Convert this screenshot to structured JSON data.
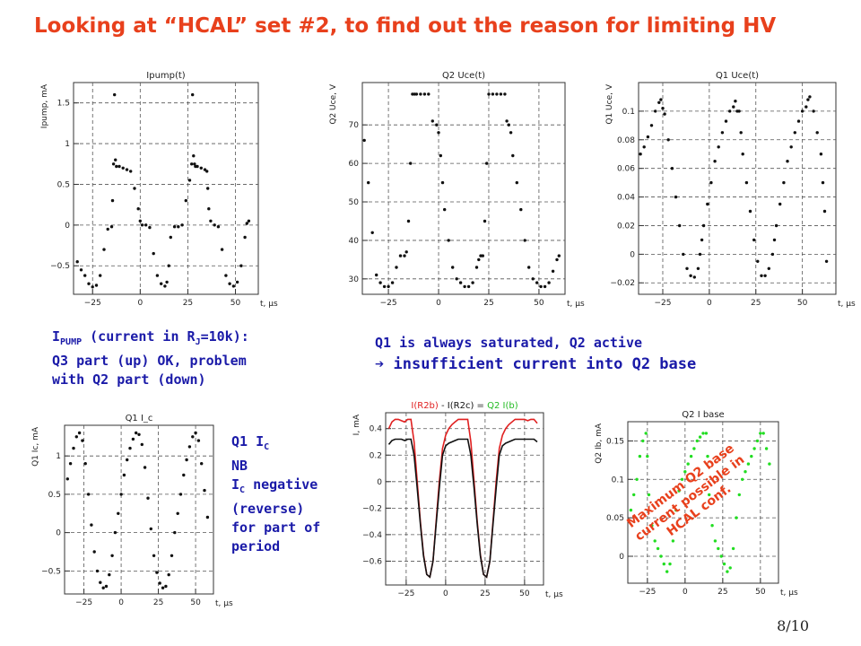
{
  "slide": {
    "title": "Looking at “HCAL” set #2, to find out the reason for limiting HV",
    "page_number": "8/10",
    "title_color": "#e8401c",
    "note_color": "#1a1aa8"
  },
  "notes": {
    "ipump": {
      "line1_main": "I",
      "line1_sub": "PUMP",
      "line1_rest": " (current in R",
      "line1_sub2": "J",
      "line1_end": "=10k):",
      "line2": "Q3 part (up) OK, problem",
      "line3": "with Q2 part (down)"
    },
    "q1q2": {
      "line1": "Q1 is always saturated, Q2 active",
      "line2_arrow": "➔",
      "line2": " insufficient current into Q2 base"
    },
    "q1ic": {
      "line1_main": "Q1 I",
      "line1_sub": "C",
      "line2": "NB",
      "line3_main": "I",
      "line3_sub": "C",
      "line3_rest": " negative",
      "line4": "(reverse)",
      "line5": "for part of",
      "line6": "period"
    },
    "annotation": {
      "line1": "Maximum Q2 base",
      "line2": "current possible in",
      "line3": "HCAL conf."
    }
  },
  "chart_data": [
    {
      "type": "scatter",
      "title": "Ipump(t)",
      "ylabel": "Ipump, mA",
      "xlabel": "t, μs",
      "xlim": [
        -35,
        62
      ],
      "ylim": [
        -0.85,
        1.75
      ],
      "xticks": [
        -25,
        0,
        25,
        50
      ],
      "yticks": [
        -0.5,
        0,
        0.5,
        1,
        1.5
      ],
      "ytick_labels": [
        "−0.5",
        "0",
        "0.5",
        "1",
        "1.5"
      ],
      "xtick_labels": [
        "−25",
        "0",
        "25",
        "50"
      ],
      "grid": true,
      "series": [
        {
          "color": "#111111",
          "x": [
            -33,
            -31,
            -29,
            -27,
            -25,
            -23,
            -21,
            -19,
            -17,
            -15,
            -14.5,
            -14,
            -13.5,
            -13,
            -12.5,
            -11,
            -9,
            -7,
            -5,
            -3,
            -1,
            0,
            1,
            3,
            5,
            7,
            9,
            11,
            13,
            14,
            15,
            16,
            18,
            20,
            22,
            24,
            26,
            27,
            27.5,
            28,
            28.5,
            29,
            30,
            32,
            34,
            35,
            35.5,
            36,
            37,
            39,
            41,
            43,
            45,
            47,
            49,
            51,
            53,
            55,
            56,
            57
          ],
          "y": [
            -0.45,
            -0.55,
            -0.62,
            -0.72,
            -0.76,
            -0.74,
            -0.62,
            -0.3,
            -0.05,
            -0.02,
            0.3,
            0.75,
            1.6,
            0.8,
            0.72,
            0.72,
            0.7,
            0.68,
            0.66,
            0.45,
            0.2,
            0.05,
            0.0,
            0.0,
            -0.03,
            -0.35,
            -0.62,
            -0.72,
            -0.75,
            -0.7,
            -0.5,
            -0.15,
            -0.02,
            -0.02,
            0.0,
            0.3,
            0.55,
            0.75,
            1.6,
            0.85,
            0.75,
            0.72,
            0.72,
            0.7,
            0.68,
            0.66,
            0.45,
            0.2,
            0.05,
            0.0,
            -0.02,
            -0.3,
            -0.62,
            -0.72,
            -0.75,
            -0.7,
            -0.5,
            -0.15,
            0.02,
            0.05
          ]
        }
      ]
    },
    {
      "type": "scatter",
      "title": "Q2 Uce(t)",
      "ylabel": "Q2 Uce, V",
      "xlabel": "t, μs",
      "xlim": [
        -38,
        63
      ],
      "ylim": [
        26,
        81
      ],
      "xticks": [
        -25,
        0,
        25,
        50
      ],
      "yticks": [
        30,
        40,
        50,
        60,
        70
      ],
      "ytick_labels": [
        "30",
        "40",
        "50",
        "60",
        "70"
      ],
      "xtick_labels": [
        "−25",
        "0",
        "25",
        "50"
      ],
      "grid": true,
      "series": [
        {
          "color": "#111111",
          "x": [
            -37,
            -35,
            -33,
            -31,
            -29,
            -27,
            -25,
            -23,
            -21,
            -19,
            -17,
            -16,
            -15,
            -14,
            -13,
            -12,
            -11,
            -9,
            -7,
            -5,
            -3,
            -1,
            0,
            1,
            2,
            3,
            5,
            7,
            9,
            11,
            13,
            15,
            17,
            19,
            20,
            21,
            22,
            23,
            24,
            25,
            27,
            29,
            31,
            33,
            34,
            35,
            36,
            37,
            39,
            41,
            43,
            45,
            47,
            49,
            51,
            53,
            55,
            57,
            59,
            60
          ],
          "y": [
            66,
            55,
            42,
            31,
            29,
            28,
            28,
            29,
            33,
            36,
            36,
            37,
            45,
            60,
            78,
            78,
            78,
            78,
            78,
            78,
            71,
            70,
            68,
            62,
            55,
            48,
            40,
            33,
            30,
            29,
            28,
            28,
            29,
            33,
            35,
            36,
            36,
            45,
            60,
            78,
            78,
            78,
            78,
            78,
            71,
            70,
            68,
            62,
            55,
            48,
            40,
            33,
            30,
            29,
            28,
            28,
            29,
            32,
            35,
            36
          ]
        }
      ]
    },
    {
      "type": "scatter",
      "title": "Q1 Uce(t)",
      "ylabel": "Q1 Uce, V",
      "xlabel": "t, μs",
      "xlim": [
        -38,
        68
      ],
      "ylim": [
        -0.028,
        0.12
      ],
      "xticks": [
        -25,
        0,
        25,
        50
      ],
      "yticks": [
        -0.02,
        0,
        0.02,
        0.04,
        0.06,
        0.08,
        0.1
      ],
      "ytick_labels": [
        "−0.02",
        "0",
        "0.02",
        "0.04",
        "0.06",
        "0.08",
        "0.1"
      ],
      "xtick_labels": [
        "−25",
        "0",
        "25",
        "50"
      ],
      "grid": true,
      "series": [
        {
          "color": "#111111",
          "x": [
            -37,
            -35,
            -33,
            -31,
            -29,
            -27,
            -26,
            -25,
            -24,
            -22,
            -20,
            -18,
            -16,
            -14,
            -12,
            -10,
            -8,
            -6,
            -5,
            -4,
            -3,
            -1,
            1,
            3,
            5,
            7,
            9,
            11,
            13,
            14,
            15,
            16,
            17,
            18,
            20,
            22,
            24,
            26,
            28,
            30,
            32,
            34,
            35,
            36,
            38,
            40,
            42,
            44,
            46,
            48,
            50,
            52,
            53,
            54,
            56,
            58,
            60,
            61,
            62,
            63
          ],
          "y": [
            0.07,
            0.075,
            0.082,
            0.09,
            0.1,
            0.106,
            0.108,
            0.102,
            0.098,
            0.08,
            0.06,
            0.04,
            0.02,
            0.0,
            -0.01,
            -0.015,
            -0.016,
            -0.01,
            0.0,
            0.01,
            0.02,
            0.035,
            0.05,
            0.065,
            0.075,
            0.085,
            0.093,
            0.1,
            0.103,
            0.107,
            0.1,
            0.1,
            0.085,
            0.07,
            0.05,
            0.03,
            0.01,
            -0.005,
            -0.015,
            -0.015,
            -0.01,
            0.0,
            0.01,
            0.02,
            0.035,
            0.05,
            0.065,
            0.075,
            0.085,
            0.093,
            0.1,
            0.103,
            0.108,
            0.11,
            0.1,
            0.085,
            0.07,
            0.05,
            0.03,
            -0.005
          ]
        }
      ]
    },
    {
      "type": "scatter",
      "title": "Q1 I_c",
      "ylabel": "Q1 Ic, mA",
      "xlabel": "t, μs",
      "xlim": [
        -38,
        62
      ],
      "ylim": [
        -0.8,
        1.4
      ],
      "xticks": [
        -25,
        0,
        25,
        50
      ],
      "yticks": [
        -0.5,
        0,
        0.5,
        1
      ],
      "ytick_labels": [
        "−0.5",
        "0",
        "0.5",
        "1"
      ],
      "xtick_labels": [
        "−25",
        "0",
        "25",
        "50"
      ],
      "grid": true,
      "series": [
        {
          "color": "#111111",
          "x": [
            -36,
            -34,
            -32,
            -30,
            -28,
            -26,
            -24,
            -22,
            -20,
            -18,
            -16,
            -14,
            -12,
            -10,
            -8,
            -6,
            -4,
            -2,
            0,
            2,
            4,
            6,
            8,
            10,
            12,
            14,
            16,
            18,
            20,
            22,
            24,
            26,
            28,
            30,
            32,
            34,
            36,
            38,
            40,
            42,
            44,
            46,
            48,
            50,
            52,
            54,
            56,
            58
          ],
          "y": [
            0.7,
            0.9,
            1.1,
            1.25,
            1.3,
            1.2,
            0.9,
            0.5,
            0.1,
            -0.25,
            -0.5,
            -0.65,
            -0.72,
            -0.7,
            -0.55,
            -0.3,
            0.0,
            0.25,
            0.5,
            0.75,
            0.95,
            1.1,
            1.22,
            1.3,
            1.28,
            1.15,
            0.85,
            0.45,
            0.05,
            -0.3,
            -0.52,
            -0.66,
            -0.72,
            -0.7,
            -0.55,
            -0.3,
            0.0,
            0.25,
            0.5,
            0.75,
            0.95,
            1.12,
            1.25,
            1.3,
            1.2,
            0.9,
            0.55,
            0.2
          ]
        }
      ]
    },
    {
      "type": "line",
      "title": "I(R2b) - I(R2c) = Q2 I(b)",
      "title_segments": [
        {
          "text": "I(R2b)",
          "color": "#e02020"
        },
        {
          "text": " - ",
          "color": "#222222"
        },
        {
          "text": "I(R2c)",
          "color": "#111111"
        },
        {
          "text": " = ",
          "color": "#222222"
        },
        {
          "text": "Q2 I(b)",
          "color": "#22bb22"
        }
      ],
      "ylabel": "I, mA",
      "xlabel": "t, μs",
      "xlim": [
        -38,
        62
      ],
      "ylim": [
        -0.78,
        0.52
      ],
      "xticks": [
        -25,
        0,
        25,
        50
      ],
      "yticks": [
        -0.6,
        -0.4,
        -0.2,
        0,
        0.2,
        0.4
      ],
      "ytick_labels": [
        "−0.6",
        "−0.4",
        "−0.2",
        "0",
        "0.2",
        "0.4"
      ],
      "xtick_labels": [
        "−25",
        "0",
        "25",
        "50"
      ],
      "grid": true,
      "series": [
        {
          "name": "I(R2b)",
          "color": "#e02020",
          "x": [
            -36,
            -34,
            -32,
            -30,
            -28,
            -26,
            -24,
            -22,
            -20,
            -18,
            -16,
            -14,
            -12,
            -10,
            -8,
            -6,
            -4,
            -2,
            0,
            2,
            4,
            6,
            8,
            10,
            12,
            14,
            16,
            18,
            20,
            22,
            24,
            26,
            28,
            30,
            32,
            34,
            36,
            38,
            40,
            42,
            44,
            46,
            48,
            50,
            52,
            54,
            56,
            58
          ],
          "y": [
            0.4,
            0.45,
            0.47,
            0.47,
            0.46,
            0.45,
            0.47,
            0.47,
            0.3,
            0.0,
            -0.3,
            -0.55,
            -0.7,
            -0.72,
            -0.6,
            -0.3,
            0.0,
            0.25,
            0.35,
            0.4,
            0.43,
            0.45,
            0.47,
            0.47,
            0.47,
            0.47,
            0.3,
            0.0,
            -0.3,
            -0.55,
            -0.7,
            -0.72,
            -0.6,
            -0.3,
            0.0,
            0.25,
            0.35,
            0.4,
            0.43,
            0.45,
            0.47,
            0.47,
            0.47,
            0.47,
            0.46,
            0.47,
            0.47,
            0.44
          ]
        },
        {
          "name": "I(R2c)",
          "color": "#111111",
          "x": [
            -36,
            -34,
            -32,
            -30,
            -28,
            -26,
            -24,
            -22,
            -20,
            -18,
            -16,
            -14,
            -12,
            -10,
            -8,
            -6,
            -4,
            -2,
            0,
            2,
            4,
            6,
            8,
            10,
            12,
            14,
            16,
            18,
            20,
            22,
            24,
            26,
            28,
            30,
            32,
            34,
            36,
            38,
            40,
            42,
            44,
            46,
            48,
            50,
            52,
            54,
            56,
            58
          ],
          "y": [
            0.28,
            0.31,
            0.32,
            0.32,
            0.32,
            0.31,
            0.32,
            0.32,
            0.2,
            -0.05,
            -0.32,
            -0.56,
            -0.7,
            -0.72,
            -0.6,
            -0.32,
            -0.05,
            0.2,
            0.27,
            0.29,
            0.3,
            0.31,
            0.32,
            0.32,
            0.32,
            0.32,
            0.2,
            -0.05,
            -0.32,
            -0.56,
            -0.7,
            -0.72,
            -0.6,
            -0.32,
            -0.05,
            0.2,
            0.27,
            0.29,
            0.3,
            0.31,
            0.32,
            0.32,
            0.32,
            0.32,
            0.32,
            0.32,
            0.32,
            0.3
          ]
        }
      ]
    },
    {
      "type": "scatter",
      "title": "Q2 I base",
      "ylabel": "Q2 Ib, mA",
      "xlabel": "t, μs",
      "xlim": [
        -38,
        62
      ],
      "ylim": [
        -0.035,
        0.175
      ],
      "xticks": [
        -25,
        0,
        25,
        50
      ],
      "yticks": [
        0,
        0.05,
        0.1,
        0.15
      ],
      "ytick_labels": [
        "0",
        "0.05",
        "0.1",
        "0.15"
      ],
      "xtick_labels": [
        "−25",
        "0",
        "25",
        "50"
      ],
      "grid": true,
      "series": [
        {
          "color": "#22dd22",
          "x": [
            -36,
            -34,
            -32,
            -30,
            -28,
            -26,
            -25,
            -24,
            -22,
            -20,
            -18,
            -16,
            -14,
            -12,
            -10,
            -8,
            -6,
            -4,
            -2,
            0,
            2,
            4,
            6,
            8,
            10,
            12,
            14,
            15,
            16,
            18,
            20,
            22,
            24,
            26,
            28,
            30,
            32,
            34,
            36,
            38,
            40,
            42,
            44,
            46,
            48,
            50,
            52,
            54,
            56
          ],
          "y": [
            0.06,
            0.08,
            0.1,
            0.13,
            0.15,
            0.16,
            0.13,
            0.08,
            0.04,
            0.02,
            0.01,
            0.0,
            -0.01,
            -0.02,
            -0.01,
            0.02,
            0.06,
            0.085,
            0.1,
            0.11,
            0.12,
            0.13,
            0.14,
            0.15,
            0.155,
            0.16,
            0.16,
            0.13,
            0.08,
            0.04,
            0.02,
            0.01,
            0.0,
            -0.01,
            -0.02,
            -0.015,
            0.01,
            0.05,
            0.08,
            0.1,
            0.11,
            0.12,
            0.13,
            0.14,
            0.15,
            0.16,
            0.16,
            0.14,
            0.12
          ]
        }
      ]
    }
  ]
}
